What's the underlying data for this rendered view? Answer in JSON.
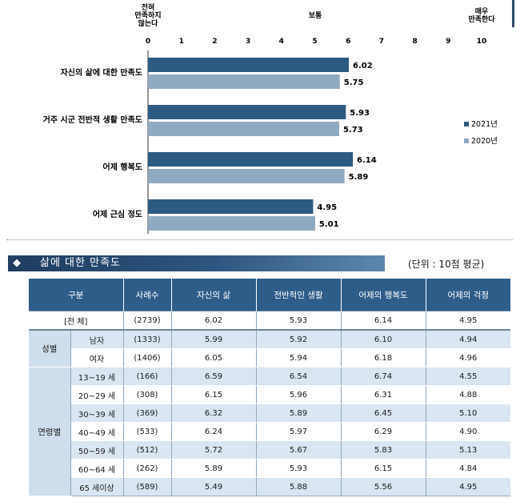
{
  "chart_data": {
    "type": "bar",
    "orientation": "horizontal",
    "xlim": [
      0,
      10
    ],
    "ticks": [
      "0",
      "1",
      "2",
      "3",
      "4",
      "5",
      "6",
      "7",
      "8",
      "9",
      "10"
    ],
    "scale_labels": {
      "low": "전혀\n만족하지\n않는다",
      "mid": "보통",
      "high": "매우\n만족한다"
    },
    "categories": [
      "자신의 삶에 대한 만족도",
      "거주 시군 전반적 생활 만족도",
      "어제 행복도",
      "어제 근심 정도"
    ],
    "series": [
      {
        "name": "2021년",
        "color": "#2d5a80",
        "values": [
          6.02,
          5.93,
          6.14,
          4.95
        ],
        "labels": [
          "6.02",
          "5.93",
          "6.14",
          "4.95"
        ]
      },
      {
        "name": "2020년",
        "color": "#8fa9c0",
        "values": [
          5.75,
          5.73,
          5.89,
          5.01
        ],
        "labels": [
          "5.75",
          "5.73",
          "5.89",
          "5.01"
        ]
      }
    ],
    "legend_position": "right"
  },
  "section": {
    "bullet": "◆",
    "title": "삶에 대한 만족도",
    "unit": "(단위 : 10점 평균)"
  },
  "table": {
    "headers": [
      "구분",
      "사례수",
      "자신의 삶",
      "전반적인 생활",
      "어제의 행복도",
      "어제의 걱정"
    ],
    "total": {
      "label": "[전  체]",
      "n": "(2739)",
      "values": [
        "6.02",
        "5.93",
        "6.14",
        "4.95"
      ]
    },
    "groups": [
      {
        "name": "성별",
        "rows": [
          {
            "label": "남자",
            "n": "(1333)",
            "values": [
              "5.99",
              "5.92",
              "6.10",
              "4.94"
            ]
          },
          {
            "label": "여자",
            "n": "(1406)",
            "values": [
              "6.05",
              "5.94",
              "6.18",
              "4.96"
            ]
          }
        ]
      },
      {
        "name": "연령별",
        "rows": [
          {
            "label": "13~19 세",
            "n": "(166)",
            "values": [
              "6.59",
              "6.54",
              "6.74",
              "4.55"
            ]
          },
          {
            "label": "20~29 세",
            "n": "(308)",
            "values": [
              "6.15",
              "5.96",
              "6.31",
              "4.88"
            ]
          },
          {
            "label": "30~39 세",
            "n": "(369)",
            "values": [
              "6.32",
              "5.89",
              "6.45",
              "5.10"
            ]
          },
          {
            "label": "40~49 세",
            "n": "(533)",
            "values": [
              "6.24",
              "5.97",
              "6.29",
              "4.90"
            ]
          },
          {
            "label": "50~59 세",
            "n": "(512)",
            "values": [
              "5.72",
              "5.67",
              "5.83",
              "5.13"
            ]
          },
          {
            "label": "60~64 세",
            "n": "(262)",
            "values": [
              "5.89",
              "5.93",
              "6.15",
              "4.84"
            ]
          },
          {
            "label": "65 세이상",
            "n": "(589)",
            "values": [
              "5.49",
              "5.88",
              "5.56",
              "4.95"
            ]
          }
        ]
      }
    ]
  }
}
